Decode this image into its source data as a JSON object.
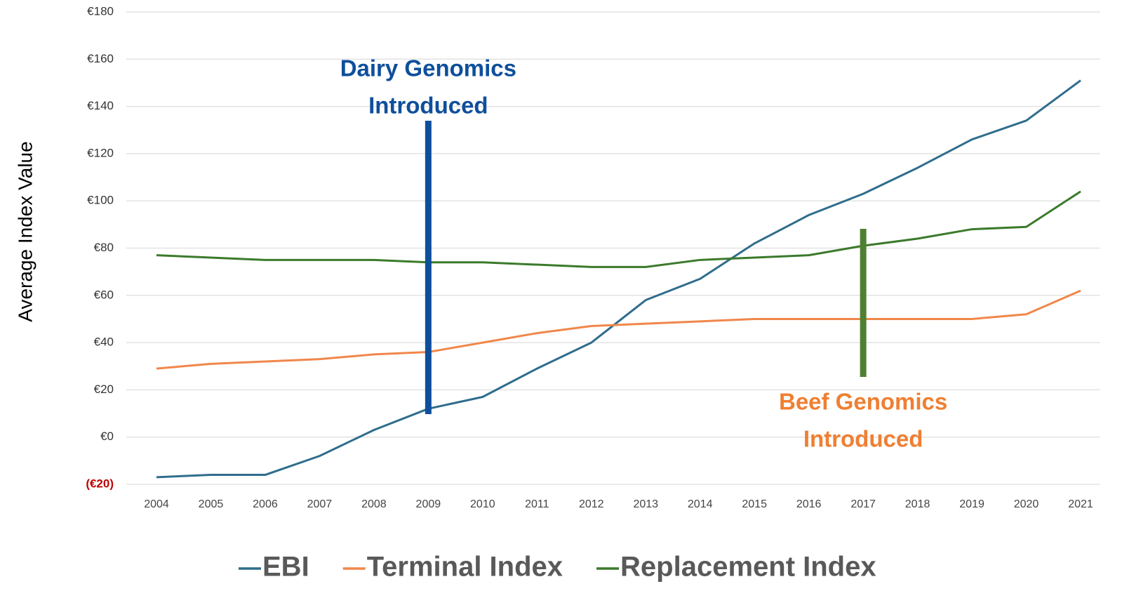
{
  "chart_data": {
    "type": "line",
    "y_label": "Average Index Value",
    "categories": [
      "2004",
      "2005",
      "2006",
      "2007",
      "2008",
      "2009",
      "2010",
      "2011",
      "2012",
      "2013",
      "2014",
      "2015",
      "2016",
      "2017",
      "2018",
      "2019",
      "2020",
      "2021"
    ],
    "series": [
      {
        "name": "EBI",
        "color": "#2f6d8c",
        "values": [
          -17,
          -16,
          -16,
          -8,
          3,
          12,
          17,
          29,
          40,
          58,
          67,
          82,
          94,
          103,
          114,
          126,
          134,
          151
        ]
      },
      {
        "name": "Terminal Index",
        "color": "#f0874a",
        "values": [
          29,
          31,
          32,
          33,
          35,
          36,
          40,
          44,
          47,
          48,
          49,
          50,
          50,
          50,
          50,
          50,
          52,
          62
        ]
      },
      {
        "name": "Replacement Index",
        "color": "#3b7a2b",
        "values": [
          77,
          76,
          75,
          75,
          75,
          74,
          74,
          73,
          72,
          72,
          75,
          76,
          77,
          81,
          84,
          88,
          89,
          104
        ]
      }
    ],
    "ylim": [
      -20,
      180
    ],
    "yticks": [
      {
        "value": -20,
        "label": "(€20)"
      },
      {
        "value": 0,
        "label": "€0"
      },
      {
        "value": 20,
        "label": "€20"
      },
      {
        "value": 40,
        "label": "€40"
      },
      {
        "value": 60,
        "label": "€60"
      },
      {
        "value": 80,
        "label": "€80"
      },
      {
        "value": 100,
        "label": "€100"
      },
      {
        "value": 120,
        "label": "€120"
      },
      {
        "value": 140,
        "label": "€140"
      },
      {
        "value": 160,
        "label": "€160"
      },
      {
        "value": 180,
        "label": "€180"
      }
    ],
    "negative_tick_color": "#c00000",
    "grid": true,
    "legend": "bottom",
    "annotations": [
      {
        "text": [
          "Dairy Genomics",
          "Introduced"
        ],
        "x": "2009",
        "text_color": "#0e4f9c",
        "line_color": "#0e4f9c"
      },
      {
        "text": [
          "Beef Genomics",
          "Introduced"
        ],
        "x": "2017",
        "text_color": "#ef7f32",
        "line_color": "#4f7f31"
      }
    ]
  }
}
